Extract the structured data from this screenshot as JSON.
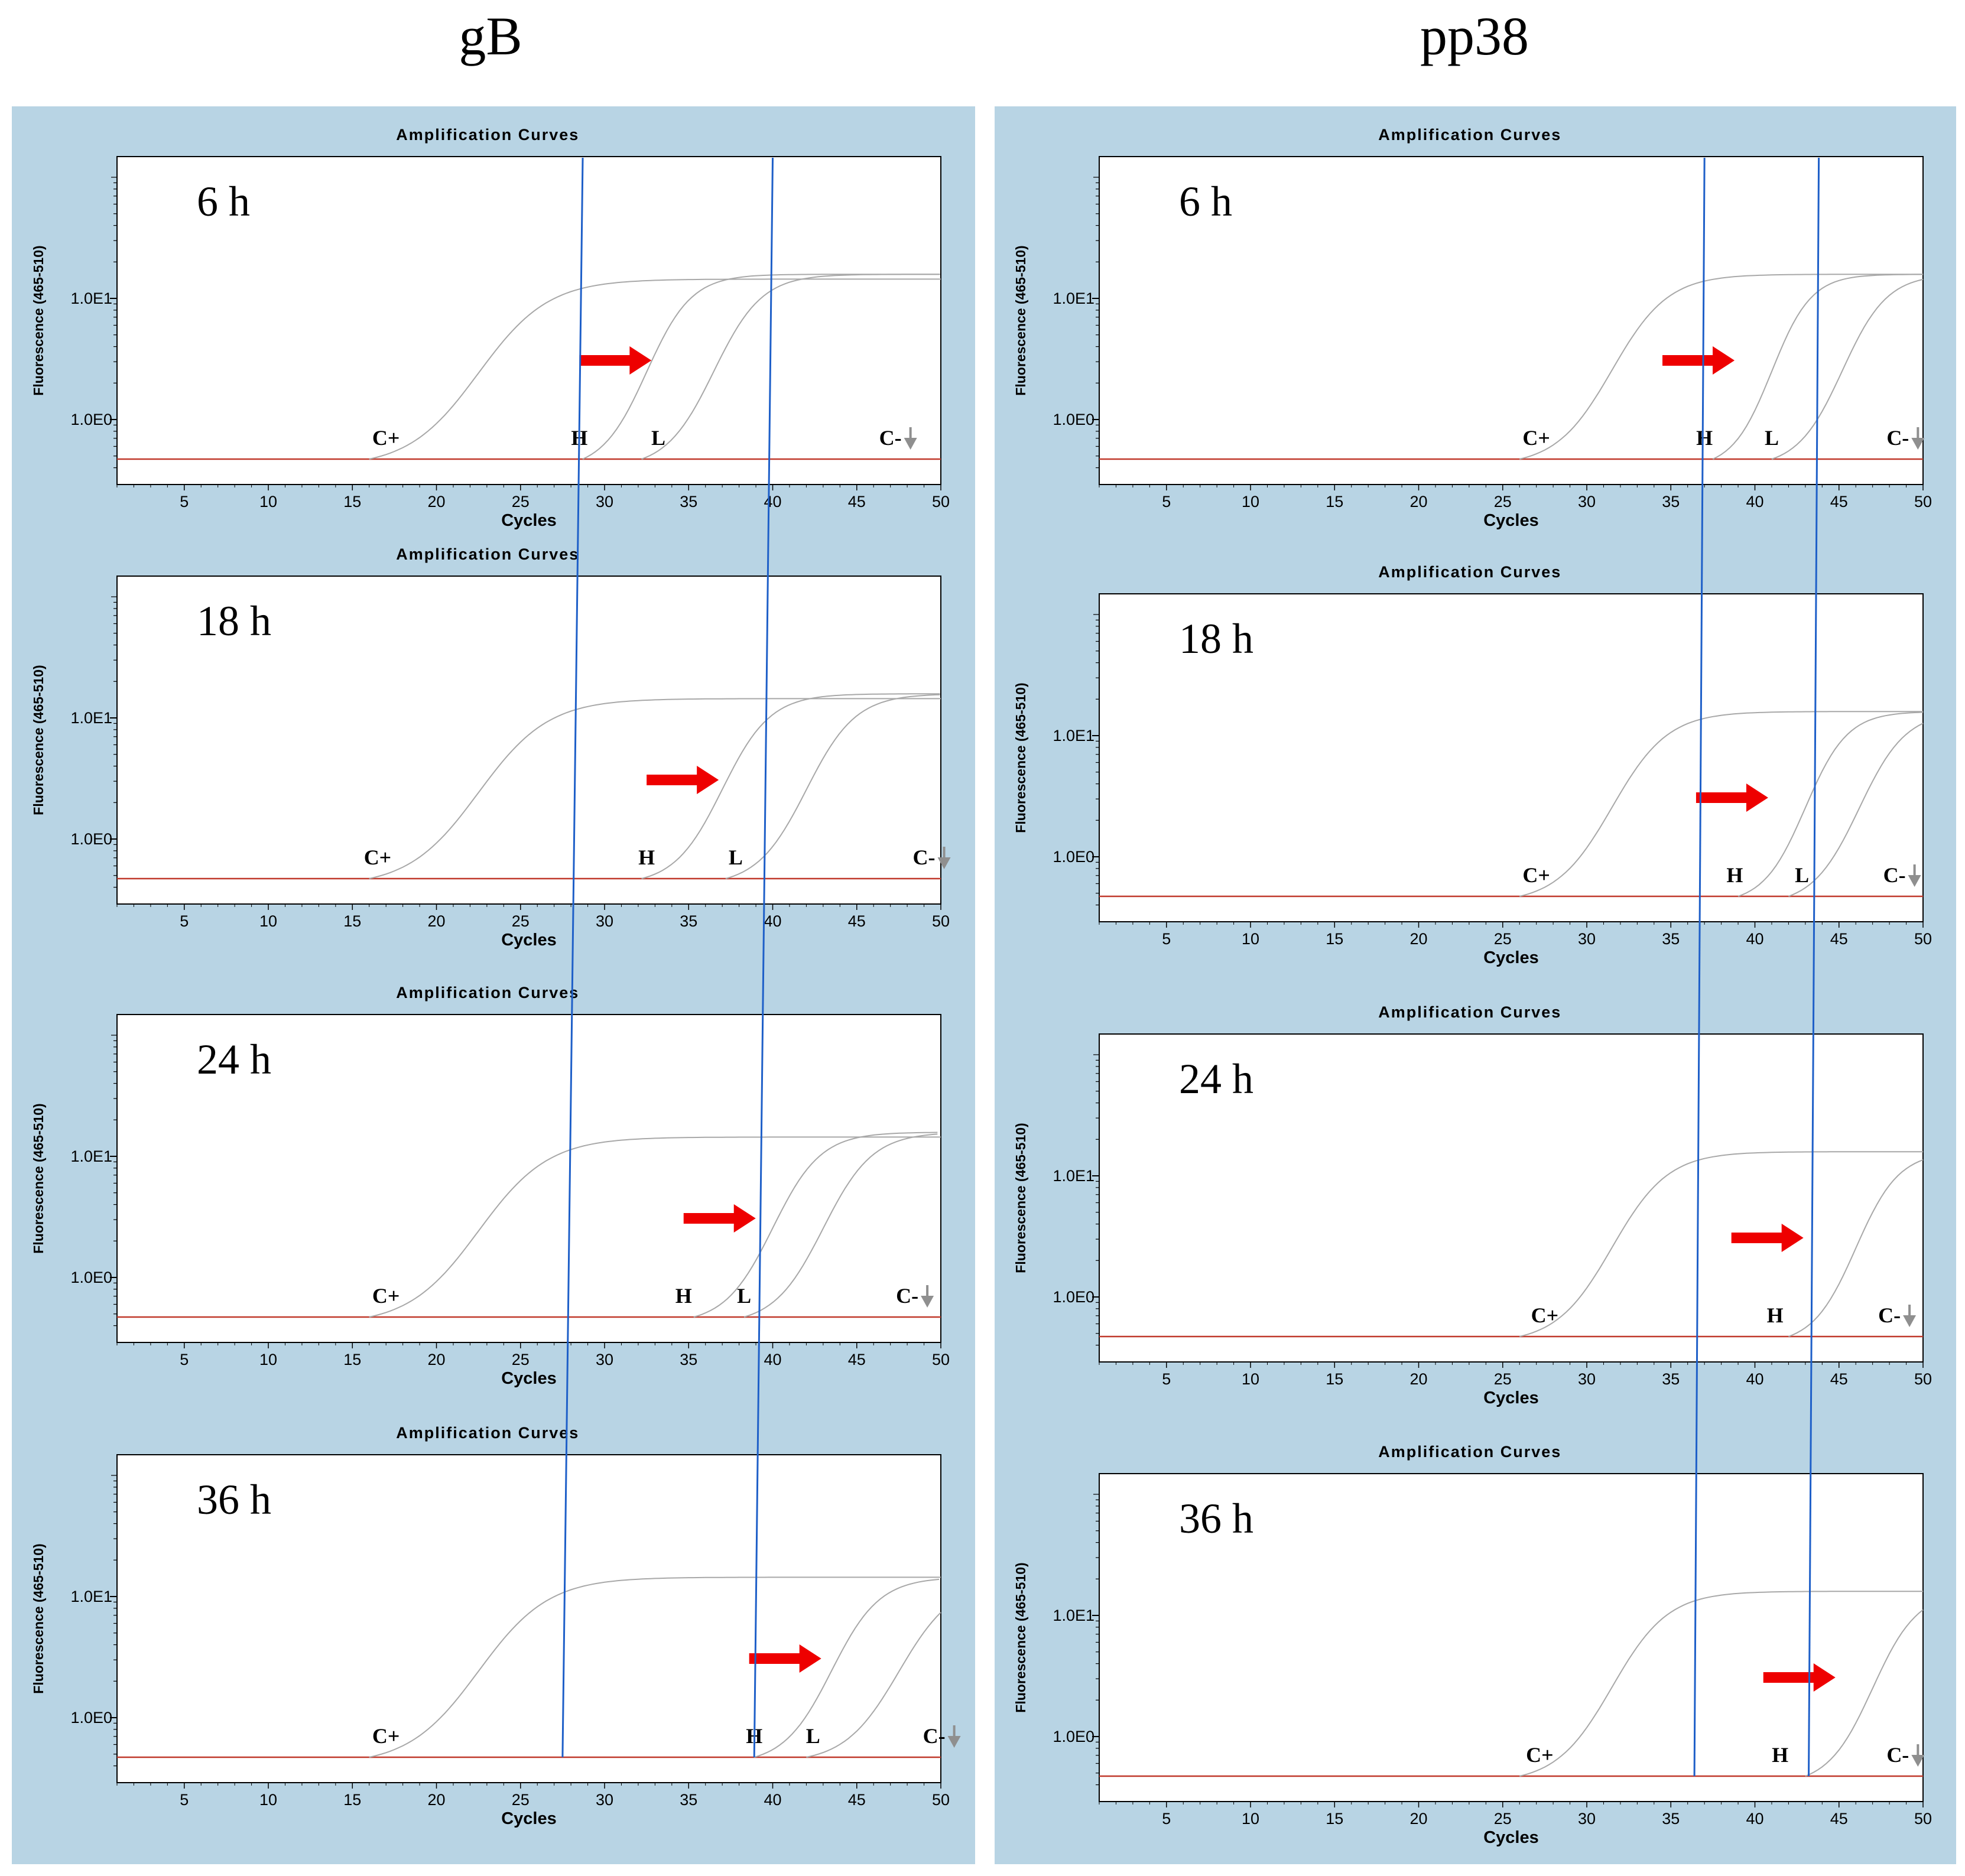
{
  "columns": [
    {
      "title": "gB",
      "guides": {
        "H": {
          "top_cycle": 28.7,
          "bottom_cycle": 27.5
        },
        "L": {
          "top_cycle": 40.0,
          "bottom_cycle": 38.9
        }
      },
      "panels": [
        {
          "time": "6 h",
          "arrow_start_cycle": 28.5,
          "labels": {
            "C+": 17.0,
            "H": 28.5,
            "L": 33.2,
            "C-": 47.0
          },
          "curves": [
            {
              "start": 16,
              "mid": 22.5,
              "k": 0.48,
              "plateau": 1.12
            },
            {
              "start": 28.7,
              "mid": 32.5,
              "k": 0.75,
              "plateau": 1.15
            },
            {
              "start": 32.2,
              "mid": 36.5,
              "k": 0.7,
              "plateau": 1.15
            }
          ]
        },
        {
          "time": "18 h",
          "arrow_start_cycle": 32.5,
          "labels": {
            "C+": 16.5,
            "H": 32.5,
            "L": 37.8,
            "C-": 49.0
          },
          "curves": [
            {
              "start": 16,
              "mid": 22.5,
              "k": 0.48,
              "plateau": 1.12
            },
            {
              "start": 32.2,
              "mid": 37.0,
              "k": 0.7,
              "plateau": 1.15
            },
            {
              "start": 37.2,
              "mid": 42.0,
              "k": 0.68,
              "plateau": 1.15
            }
          ]
        },
        {
          "time": "24 h",
          "arrow_start_cycle": 34.7,
          "labels": {
            "C+": 17.0,
            "H": 34.7,
            "L": 38.3,
            "C-": 48.0
          },
          "curves": [
            {
              "start": 16,
              "mid": 22.5,
              "k": 0.48,
              "plateau": 1.12
            },
            {
              "start": 35.3,
              "mid": 40.0,
              "k": 0.7,
              "plateau": 1.15
            },
            {
              "start": 38.3,
              "mid": 43.0,
              "k": 0.68,
              "plateau": 1.15
            }
          ]
        },
        {
          "time": "36 h",
          "arrow_start_cycle": 38.6,
          "labels": {
            "C+": 17.0,
            "H": 38.9,
            "L": 42.4,
            "C-": 49.6
          },
          "curves": [
            {
              "start": 16,
              "mid": 22.5,
              "k": 0.48,
              "plateau": 1.12
            },
            {
              "start": 38.9,
              "mid": 43.5,
              "k": 0.7,
              "plateau": 1.12
            },
            {
              "start": 42.0,
              "mid": 47.5,
              "k": 0.62,
              "plateau": 1.1
            }
          ]
        }
      ]
    },
    {
      "title": "pp38",
      "guides": {
        "H": {
          "top_cycle": 37.0,
          "bottom_cycle": 36.4
        },
        "L": {
          "top_cycle": 43.8,
          "bottom_cycle": 43.2
        }
      },
      "panels": [
        {
          "time": "6 h",
          "arrow_start_cycle": 34.5,
          "labels": {
            "C+": 27.0,
            "H": 37.0,
            "L": 41.0,
            "C-": 48.5
          },
          "curves": [
            {
              "start": 26,
              "mid": 31.5,
              "k": 0.6,
              "plateau": 1.15
            },
            {
              "start": 37.5,
              "mid": 41.0,
              "k": 0.85,
              "plateau": 1.15
            },
            {
              "start": 41.0,
              "mid": 45.2,
              "k": 0.75,
              "plateau": 1.15
            }
          ]
        },
        {
          "time": "18 h",
          "arrow_start_cycle": 36.5,
          "labels": {
            "C+": 27.0,
            "H": 38.8,
            "L": 42.8,
            "C-": 48.3
          },
          "curves": [
            {
              "start": 26,
              "mid": 31.5,
              "k": 0.6,
              "plateau": 1.15
            },
            {
              "start": 39.0,
              "mid": 43.0,
              "k": 0.8,
              "plateau": 1.15
            },
            {
              "start": 42.0,
              "mid": 46.2,
              "k": 0.72,
              "plateau": 1.15
            }
          ]
        },
        {
          "time": "24 h",
          "arrow_start_cycle": 38.6,
          "labels": {
            "C+": 27.5,
            "H": 41.2,
            "C-": 48.0
          },
          "curves": [
            {
              "start": 26,
              "mid": 31.5,
              "k": 0.6,
              "plateau": 1.15
            },
            {
              "start": 42.0,
              "mid": 46.0,
              "k": 0.78,
              "plateau": 1.15
            }
          ]
        },
        {
          "time": "36 h",
          "arrow_start_cycle": 40.5,
          "labels": {
            "C+": 27.2,
            "H": 41.5,
            "C-": 48.5
          },
          "curves": [
            {
              "start": 26,
              "mid": 31.5,
              "k": 0.6,
              "plateau": 1.15
            },
            {
              "start": 43.0,
              "mid": 47.0,
              "k": 0.75,
              "plateau": 1.15
            }
          ]
        }
      ]
    }
  ],
  "chart_data": {
    "type": "line",
    "panel_title": "Amplification Curves",
    "xlabel": "Cycles",
    "ylabel": "Fluorescence (465-510)",
    "xlim": [
      1,
      50
    ],
    "x_ticks": [
      5,
      10,
      15,
      20,
      25,
      30,
      35,
      40,
      45,
      50
    ],
    "y_ticks": [
      "1.0E0",
      "1.0E1"
    ],
    "y_scale": "log",
    "threshold_color": "#c0392b",
    "curve_color": "#a8a8a8",
    "guide_color": "#1e5fc8",
    "arrow_color": "#ee0000",
    "label_arrow_color": "#8f8f8f",
    "sample_labels": [
      "C+",
      "H",
      "L",
      "C-"
    ]
  }
}
